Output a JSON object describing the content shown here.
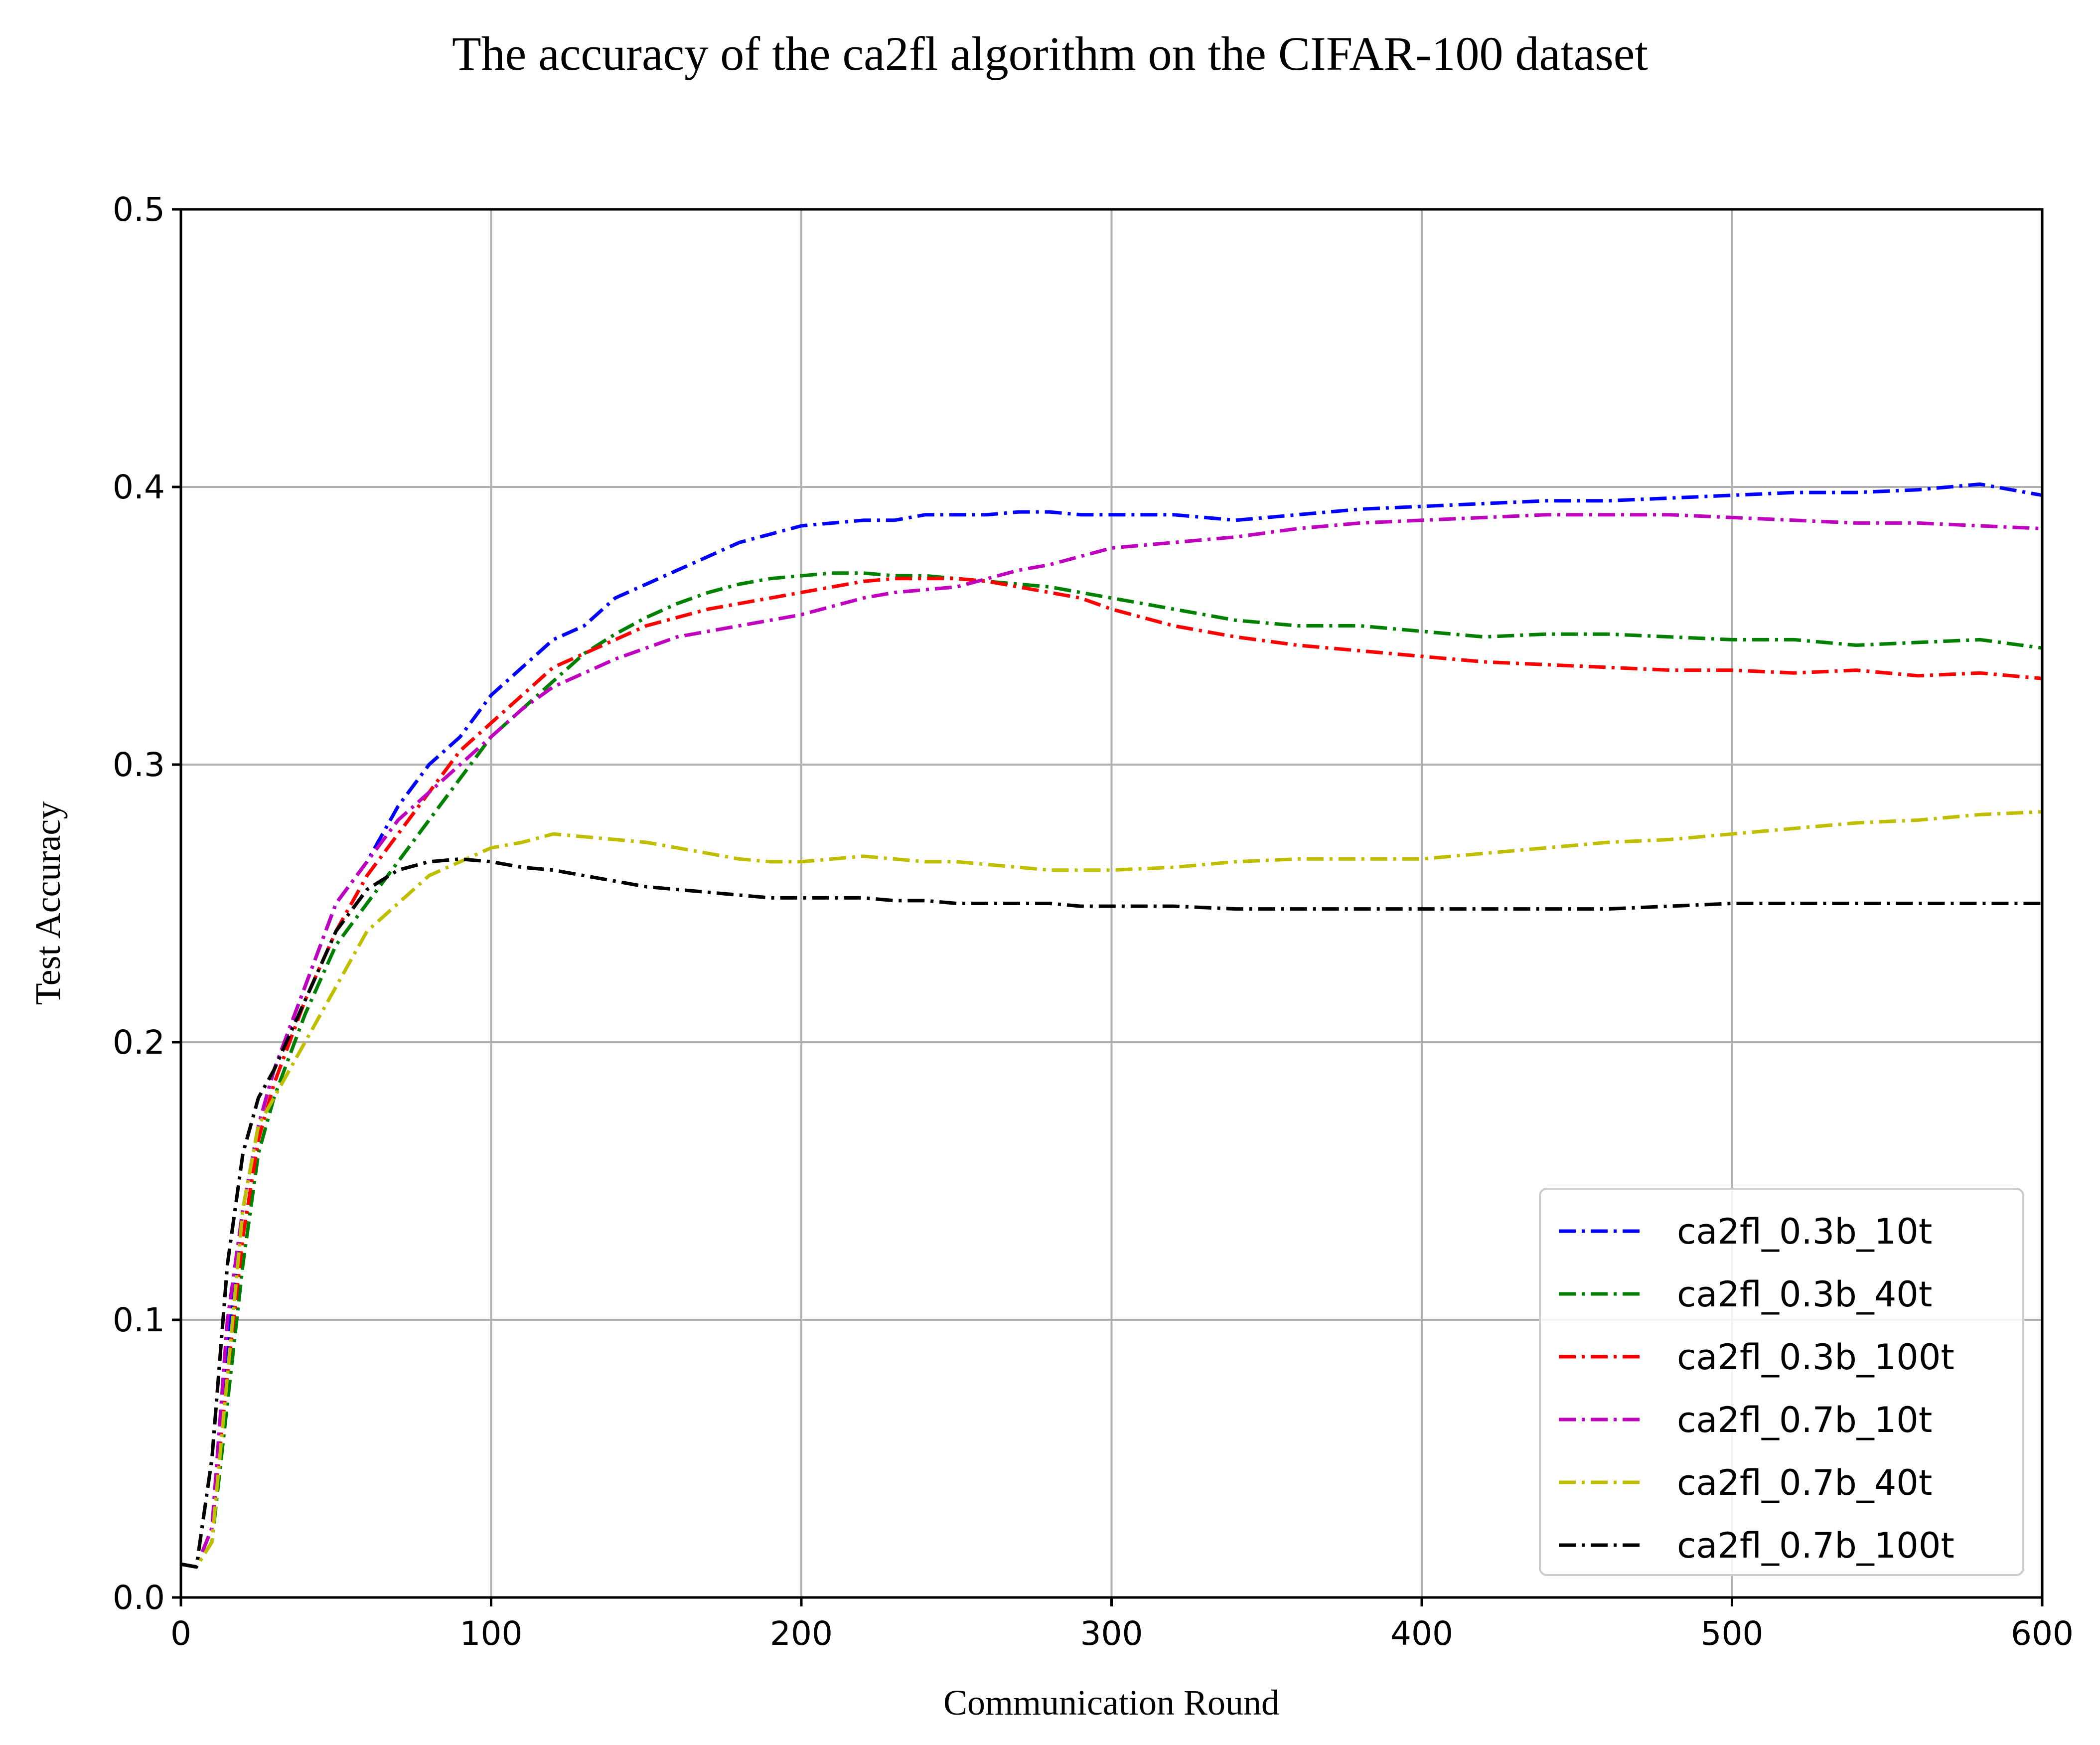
{
  "chart_data": {
    "type": "line",
    "title": "The accuracy of the ca2fl algorithm on the CIFAR-100 dataset",
    "xlabel": "Communication Round",
    "ylabel": "Test Accuracy",
    "xlim": [
      0,
      600
    ],
    "ylim": [
      0.0,
      0.5
    ],
    "x_ticks": [
      0,
      100,
      200,
      300,
      400,
      500,
      600
    ],
    "y_ticks": [
      0.0,
      0.1,
      0.2,
      0.3,
      0.4,
      0.5
    ],
    "x_tick_labels": [
      "0",
      "100",
      "200",
      "300",
      "400",
      "500",
      "600"
    ],
    "y_tick_labels": [
      "0.0",
      "0.1",
      "0.2",
      "0.3",
      "0.4",
      "0.5"
    ],
    "grid": true,
    "legend_position": "lower-right",
    "x": [
      0,
      5,
      10,
      15,
      20,
      25,
      30,
      40,
      50,
      60,
      70,
      80,
      90,
      100,
      110,
      120,
      130,
      140,
      150,
      160,
      170,
      180,
      190,
      200,
      210,
      220,
      230,
      240,
      250,
      260,
      270,
      280,
      290,
      300,
      320,
      340,
      360,
      380,
      400,
      420,
      440,
      460,
      480,
      500,
      520,
      540,
      560,
      580,
      600
    ],
    "series": [
      {
        "name": "ca2fl_0.3b_10t",
        "color": "#0000ff",
        "values": [
          0.012,
          0.011,
          0.025,
          0.09,
          0.14,
          0.17,
          0.19,
          0.22,
          0.25,
          0.265,
          0.285,
          0.3,
          0.31,
          0.325,
          0.335,
          0.345,
          0.35,
          0.36,
          0.365,
          0.37,
          0.375,
          0.38,
          0.383,
          0.386,
          0.387,
          0.388,
          0.388,
          0.39,
          0.39,
          0.39,
          0.391,
          0.391,
          0.39,
          0.39,
          0.39,
          0.388,
          0.39,
          0.392,
          0.393,
          0.394,
          0.395,
          0.395,
          0.396,
          0.397,
          0.398,
          0.398,
          0.399,
          0.401,
          0.397
        ]
      },
      {
        "name": "ca2fl_0.3b_40t",
        "color": "#008000",
        "values": [
          0.012,
          0.011,
          0.02,
          0.07,
          0.12,
          0.16,
          0.18,
          0.21,
          0.235,
          0.25,
          0.265,
          0.28,
          0.295,
          0.31,
          0.32,
          0.33,
          0.34,
          0.347,
          0.353,
          0.358,
          0.362,
          0.365,
          0.367,
          0.368,
          0.369,
          0.369,
          0.368,
          0.368,
          0.367,
          0.366,
          0.365,
          0.364,
          0.362,
          0.36,
          0.356,
          0.352,
          0.35,
          0.35,
          0.348,
          0.346,
          0.347,
          0.347,
          0.346,
          0.345,
          0.345,
          0.343,
          0.344,
          0.345,
          0.342
        ]
      },
      {
        "name": "ca2fl_0.3b_100t",
        "color": "#ff0000",
        "values": [
          0.012,
          0.011,
          0.025,
          0.08,
          0.13,
          0.165,
          0.185,
          0.215,
          0.24,
          0.26,
          0.275,
          0.29,
          0.305,
          0.315,
          0.325,
          0.335,
          0.34,
          0.345,
          0.35,
          0.353,
          0.356,
          0.358,
          0.36,
          0.362,
          0.364,
          0.366,
          0.367,
          0.367,
          0.367,
          0.366,
          0.364,
          0.362,
          0.36,
          0.356,
          0.35,
          0.346,
          0.343,
          0.341,
          0.339,
          0.337,
          0.336,
          0.335,
          0.334,
          0.334,
          0.333,
          0.334,
          0.332,
          0.333,
          0.331
        ]
      },
      {
        "name": "ca2fl_0.7b_10t",
        "color": "#bf00bf",
        "values": [
          0.012,
          0.011,
          0.025,
          0.1,
          0.14,
          0.17,
          0.19,
          0.22,
          0.25,
          0.265,
          0.28,
          0.29,
          0.3,
          0.31,
          0.32,
          0.328,
          0.333,
          0.338,
          0.342,
          0.346,
          0.348,
          0.35,
          0.352,
          0.354,
          0.357,
          0.36,
          0.362,
          0.363,
          0.364,
          0.367,
          0.37,
          0.372,
          0.375,
          0.378,
          0.38,
          0.382,
          0.385,
          0.387,
          0.388,
          0.389,
          0.39,
          0.39,
          0.39,
          0.389,
          0.388,
          0.387,
          0.387,
          0.386,
          0.385
        ]
      },
      {
        "name": "ca2fl_0.7b_40t",
        "color": "#bfbf00",
        "values": [
          0.012,
          0.011,
          0.02,
          0.08,
          0.14,
          0.17,
          0.18,
          0.2,
          0.22,
          0.24,
          0.25,
          0.26,
          0.265,
          0.27,
          0.272,
          0.275,
          0.274,
          0.273,
          0.272,
          0.27,
          0.268,
          0.266,
          0.265,
          0.265,
          0.266,
          0.267,
          0.266,
          0.265,
          0.265,
          0.264,
          0.263,
          0.262,
          0.262,
          0.262,
          0.263,
          0.265,
          0.266,
          0.266,
          0.266,
          0.268,
          0.27,
          0.272,
          0.273,
          0.275,
          0.277,
          0.279,
          0.28,
          0.282,
          0.283
        ]
      },
      {
        "name": "ca2fl_0.7b_100t",
        "color": "#000000",
        "values": [
          0.012,
          0.011,
          0.05,
          0.12,
          0.16,
          0.18,
          0.19,
          0.215,
          0.24,
          0.255,
          0.262,
          0.265,
          0.266,
          0.265,
          0.263,
          0.262,
          0.26,
          0.258,
          0.256,
          0.255,
          0.254,
          0.253,
          0.252,
          0.252,
          0.252,
          0.252,
          0.251,
          0.251,
          0.25,
          0.25,
          0.25,
          0.25,
          0.249,
          0.249,
          0.249,
          0.248,
          0.248,
          0.248,
          0.248,
          0.248,
          0.248,
          0.248,
          0.249,
          0.25,
          0.25,
          0.25,
          0.25,
          0.25,
          0.25
        ]
      }
    ]
  }
}
